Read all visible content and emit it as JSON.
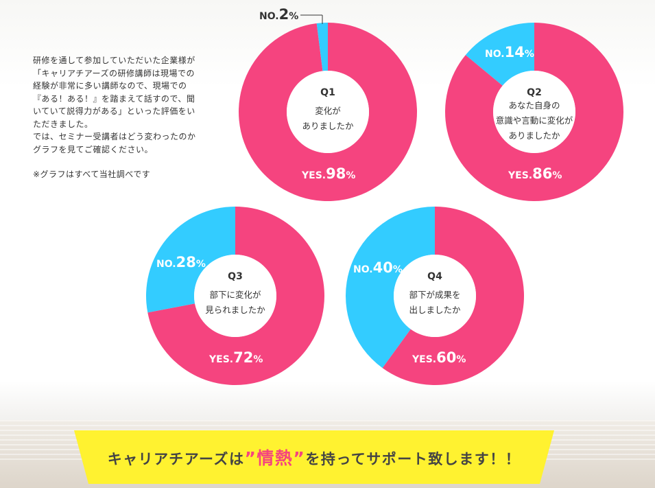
{
  "intro": {
    "lines": [
      "研修を通して参加していただいた企業様が",
      "「キャリアチアーズの研修講師は現場での",
      "経験が非常に多い講師なので、現場での",
      "『ある！ある！』を踏まえて話すので、聞",
      "いていて説得力がある」といった評価をい",
      "ただきました。",
      "では、セミナー受講者はどう変わったのか",
      "グラフを見てご確認ください。"
    ],
    "note": "※グラフはすべて当社調べです"
  },
  "colors": {
    "yes": "#f5447f",
    "no": "#33ccff",
    "banner": "#fff230"
  },
  "chart_data": [
    {
      "type": "pie",
      "title": "Q1",
      "question": [
        "変化が",
        "ありましたか"
      ],
      "slices": [
        {
          "label": "YES.",
          "value": 98
        },
        {
          "label": "NO.",
          "value": 2
        }
      ]
    },
    {
      "type": "pie",
      "title": "Q2",
      "question": [
        "あなた自身の",
        "意識や言動に変化が",
        "ありましたか"
      ],
      "slices": [
        {
          "label": "YES.",
          "value": 86
        },
        {
          "label": "NO.",
          "value": 14
        }
      ]
    },
    {
      "type": "pie",
      "title": "Q3",
      "question": [
        "部下に変化が",
        "見られましたか"
      ],
      "slices": [
        {
          "label": "YES.",
          "value": 72
        },
        {
          "label": "NO.",
          "value": 28
        }
      ]
    },
    {
      "type": "pie",
      "title": "Q4",
      "question": [
        "部下が成果を",
        "出しましたか"
      ],
      "slices": [
        {
          "label": "YES.",
          "value": 60
        },
        {
          "label": "NO.",
          "value": 40
        }
      ]
    }
  ],
  "banner": {
    "before": "キャリアチアーズは",
    "highlight": "”情熱”",
    "after": "を持ってサポート致します！！"
  }
}
